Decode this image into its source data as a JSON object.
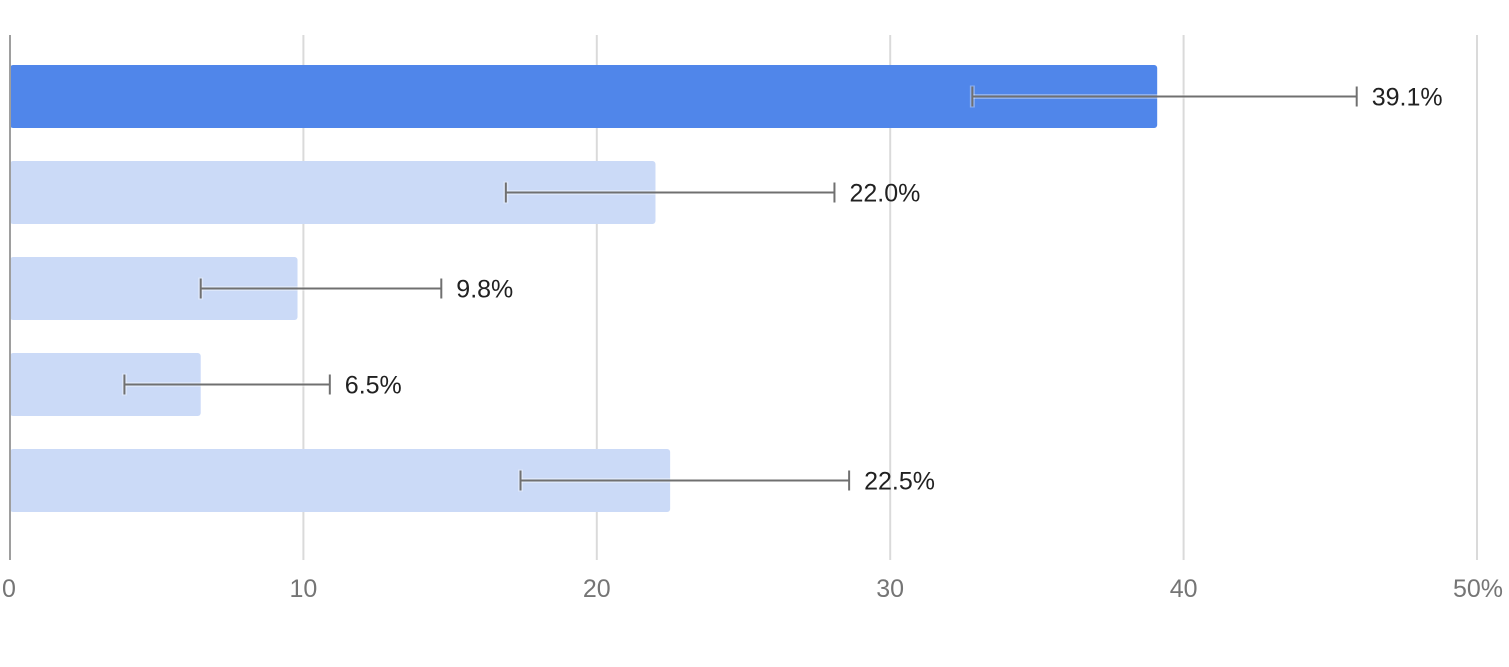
{
  "chart_data": {
    "type": "bar",
    "orientation": "horizontal",
    "title": "",
    "xlabel": "",
    "ylabel": "",
    "categories": [
      "",
      "",
      "",
      "",
      ""
    ],
    "values": [
      39.1,
      22.0,
      9.8,
      6.5,
      22.5
    ],
    "value_labels": [
      "39.1%",
      "22.0%",
      "9.8%",
      "6.5%",
      "22.5%"
    ],
    "error_bars": [
      {
        "low": 32.8,
        "high": 45.9
      },
      {
        "low": 16.9,
        "high": 28.1
      },
      {
        "low": 6.5,
        "high": 14.7
      },
      {
        "low": 3.9,
        "high": 10.9
      },
      {
        "low": 17.4,
        "high": 28.6
      }
    ],
    "highlighted_index": 0,
    "xlim": [
      0,
      50
    ],
    "x_ticks": [
      0,
      10,
      20,
      30,
      40,
      50
    ],
    "x_tick_labels": [
      "0",
      "10",
      "20",
      "30",
      "40",
      "50%"
    ],
    "grid": true,
    "legend": null,
    "colors": {
      "highlight": "#5086ea",
      "normal": "#cbdaf7",
      "error_bar": "#707070",
      "gridline": "#dadada",
      "axis": "#9e9e9e"
    }
  }
}
